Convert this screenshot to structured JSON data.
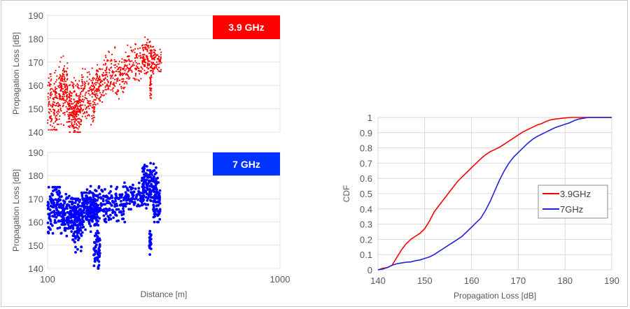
{
  "chart_data": [
    {
      "type": "scatter",
      "title": "3.9 GHz",
      "badge_color": "#ff0000",
      "point_color": "#ff0000",
      "xlabel": "",
      "ylabel": "Propagation Loss [dB]",
      "xscale": "log",
      "xlim": [
        100,
        1000
      ],
      "ylim": [
        140,
        190
      ],
      "yticks": [
        140,
        150,
        160,
        170,
        180,
        190
      ],
      "grid": true,
      "clusters": [
        {
          "d": [
            100,
            112
          ],
          "pl": [
            141,
            176
          ],
          "n": 140,
          "center": 152
        },
        {
          "d": [
            112,
            122
          ],
          "pl": [
            143,
            176
          ],
          "n": 150,
          "center": 158
        },
        {
          "d": [
            122,
            140
          ],
          "pl": [
            140,
            168
          ],
          "n": 260,
          "center": 150
        },
        {
          "d": [
            140,
            160
          ],
          "pl": [
            140,
            172
          ],
          "n": 140,
          "center": 154
        },
        {
          "d": [
            160,
            175
          ],
          "pl": [
            146,
            170
          ],
          "n": 90,
          "center": 160
        },
        {
          "d": [
            175,
            215
          ],
          "pl": [
            152,
            178
          ],
          "n": 160,
          "center": 164
        },
        {
          "d": [
            215,
            255
          ],
          "pl": [
            160,
            181
          ],
          "n": 110,
          "center": 169
        },
        {
          "d": [
            255,
            290
          ],
          "pl": [
            165,
            187
          ],
          "n": 150,
          "center": 172
        },
        {
          "d": [
            275,
            280
          ],
          "pl": [
            151,
            170
          ],
          "n": 35,
          "center": 160
        },
        {
          "d": [
            290,
            310
          ],
          "pl": [
            166,
            183
          ],
          "n": 40,
          "center": 171
        }
      ]
    },
    {
      "type": "scatter",
      "title": "7 GHz",
      "badge_color": "#0033ff",
      "point_color": "#0000ff",
      "xlabel": "Distance [m]",
      "ylabel": "Propagation Loss [dB]",
      "xscale": "log",
      "xlim": [
        100,
        1000
      ],
      "ylim": [
        140,
        190
      ],
      "xticks": [
        100,
        1000
      ],
      "yticks": [
        140,
        150,
        160,
        170,
        180,
        190
      ],
      "grid": true,
      "clusters": [
        {
          "d": [
            100,
            115
          ],
          "pl": [
            147,
            175
          ],
          "n": 120,
          "center": 166
        },
        {
          "d": [
            115,
            128
          ],
          "pl": [
            150,
            172
          ],
          "n": 110,
          "center": 164
        },
        {
          "d": [
            128,
            140
          ],
          "pl": [
            140,
            170
          ],
          "n": 140,
          "center": 160
        },
        {
          "d": [
            140,
            165
          ],
          "pl": [
            155,
            177
          ],
          "n": 200,
          "center": 166
        },
        {
          "d": [
            158,
            168
          ],
          "pl": [
            140,
            162
          ],
          "n": 60,
          "center": 148
        },
        {
          "d": [
            165,
            215
          ],
          "pl": [
            160,
            180
          ],
          "n": 130,
          "center": 168
        },
        {
          "d": [
            215,
            260
          ],
          "pl": [
            163,
            178
          ],
          "n": 80,
          "center": 171
        },
        {
          "d": [
            255,
            295
          ],
          "pl": [
            164,
            190
          ],
          "n": 140,
          "center": 176
        },
        {
          "d": [
            274,
            279
          ],
          "pl": [
            146,
            160
          ],
          "n": 25,
          "center": 152
        },
        {
          "d": [
            285,
            305
          ],
          "pl": [
            160,
            185
          ],
          "n": 70,
          "center": 168
        }
      ]
    },
    {
      "type": "line",
      "title": "",
      "xlabel": "Propagation Loss [dB]",
      "ylabel": "CDF",
      "xlim": [
        140,
        190
      ],
      "ylim": [
        0,
        1
      ],
      "xticks": [
        140,
        150,
        160,
        170,
        180,
        190
      ],
      "yticks": [
        0,
        0.1,
        0.2,
        0.3,
        0.4,
        0.5,
        0.6,
        0.7,
        0.8,
        0.9,
        1
      ],
      "grid": true,
      "legend_position": "right-middle",
      "series": [
        {
          "name": "3.9GHz",
          "color": "#ff0000",
          "x": [
            140,
            141,
            142,
            143,
            144,
            145,
            146,
            147,
            148,
            149,
            150,
            151,
            152,
            153,
            154,
            155,
            156,
            157,
            158,
            159,
            160,
            161,
            162,
            163,
            164,
            165,
            166,
            167,
            168,
            169,
            170,
            171,
            172,
            173,
            174,
            175,
            176,
            177,
            178,
            179,
            180,
            181,
            182,
            183,
            184,
            185,
            190
          ],
          "y": [
            0,
            0.01,
            0.015,
            0.03,
            0.08,
            0.13,
            0.17,
            0.2,
            0.22,
            0.24,
            0.27,
            0.32,
            0.38,
            0.42,
            0.46,
            0.5,
            0.54,
            0.58,
            0.61,
            0.64,
            0.67,
            0.7,
            0.73,
            0.755,
            0.775,
            0.79,
            0.805,
            0.825,
            0.845,
            0.865,
            0.885,
            0.905,
            0.92,
            0.935,
            0.95,
            0.96,
            0.975,
            0.985,
            0.99,
            0.993,
            0.997,
            1,
            1,
            1,
            1,
            1,
            1
          ]
        },
        {
          "name": "7GHz",
          "color": "#2222dd",
          "x": [
            140,
            141,
            142,
            143,
            144,
            145,
            146,
            147,
            148,
            149,
            150,
            151,
            152,
            153,
            154,
            155,
            156,
            157,
            158,
            159,
            160,
            161,
            162,
            163,
            164,
            165,
            166,
            167,
            168,
            169,
            170,
            171,
            172,
            173,
            174,
            175,
            176,
            177,
            178,
            179,
            180,
            181,
            182,
            183,
            184,
            185,
            190
          ],
          "y": [
            0,
            0.005,
            0.015,
            0.03,
            0.04,
            0.045,
            0.05,
            0.052,
            0.06,
            0.065,
            0.075,
            0.085,
            0.1,
            0.12,
            0.14,
            0.16,
            0.18,
            0.2,
            0.22,
            0.25,
            0.28,
            0.31,
            0.34,
            0.39,
            0.45,
            0.52,
            0.59,
            0.65,
            0.7,
            0.74,
            0.77,
            0.8,
            0.83,
            0.855,
            0.875,
            0.89,
            0.905,
            0.92,
            0.935,
            0.945,
            0.955,
            0.965,
            0.98,
            0.99,
            0.995,
            1,
            1
          ]
        }
      ]
    }
  ],
  "labels": {
    "top_ylabel": "Propagation Loss [dB]",
    "bottom_ylabel": "Propagation Loss [dB]",
    "left_xlabel": "Distance [m]",
    "badge_top": "3.9 GHz",
    "badge_bottom": "7 GHz",
    "cdf_ylabel": "CDF",
    "cdf_xlabel": "Propagation Loss [dB]",
    "legend_1": "3.9GHz",
    "legend_2": "7GHz",
    "x_tick_100": "100",
    "x_tick_1000": "1000"
  }
}
